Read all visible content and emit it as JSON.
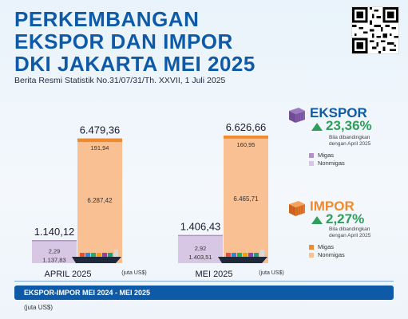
{
  "header": {
    "title_lines": [
      "PERKEMBANGAN",
      "EKSPOR DAN IMPOR",
      "DKI JAKARTA MEI 2025"
    ],
    "subtitle": "Berita Resmi Statistik No.31/07/31/Th. XXVII, 1 Juli 2025"
  },
  "legend": {
    "ekspor": {
      "title": "EKSPOR",
      "pct": "23,36%",
      "note": "Bila dibandingkan dengan April 2025",
      "migas_label": "Migas",
      "nonmigas_label": "Nonmigas"
    },
    "impor": {
      "title": "IMPOR",
      "pct": "2,27%",
      "note": "Bila dibandingkan dengan April 2025",
      "migas_label": "Migas",
      "nonmigas_label": "Nonmigas"
    }
  },
  "colors": {
    "title_blue": "#0e5aa7",
    "ekspor_migas": "#b48fc9",
    "ekspor_nonmigas": "#d7c6e4",
    "impor_migas": "#f08a2c",
    "impor_nonmigas": "#f9c093",
    "green": "#2e9e5b"
  },
  "chart_data": {
    "type": "bar",
    "stacked": true,
    "unit_label": "(juta US$)",
    "groups": [
      {
        "period": "APRIL 2025",
        "ekspor": {
          "total_label": "1.140,12",
          "total": 1140.12,
          "migas_label": "2,29",
          "migas": 2.29,
          "nonmigas_label": "1.137,83",
          "nonmigas": 1137.83
        },
        "impor": {
          "total_label": "6.479,36",
          "total": 6479.36,
          "migas_label": "191,94",
          "migas": 191.94,
          "nonmigas_label": "6.287,42",
          "nonmigas": 6287.42
        }
      },
      {
        "period": "MEI 2025",
        "ekspor": {
          "total_label": "1.406,43",
          "total": 1406.43,
          "migas_label": "2,92",
          "migas": 2.92,
          "nonmigas_label": "1.403,51",
          "nonmigas": 1403.51
        },
        "impor": {
          "total_label": "6.626,66",
          "total": 6626.66,
          "migas_label": "160,95",
          "migas": 160.95,
          "nonmigas_label": "6.465,71",
          "nonmigas": 6465.71
        }
      }
    ],
    "ylim": [
      0,
      6626.66
    ]
  },
  "footer": {
    "bar_label": "EKSPOR-IMPOR MEI 2024 - MEI 2025",
    "unit": "(juta US$)"
  }
}
